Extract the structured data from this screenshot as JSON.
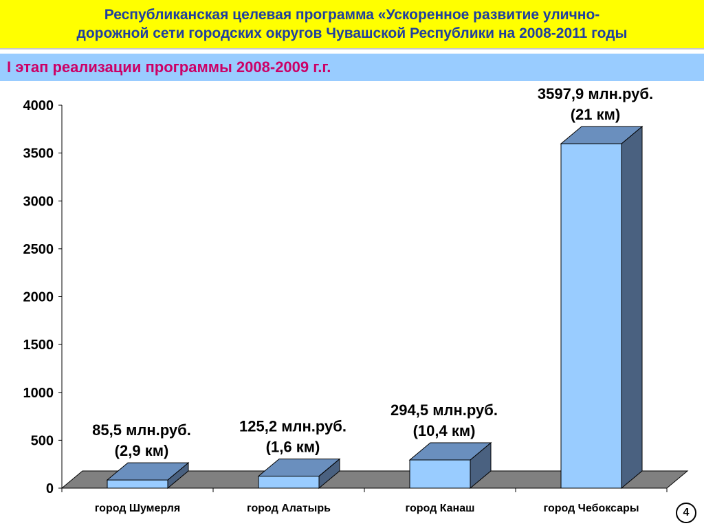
{
  "header": {
    "title_line1": "Республиканская целевая программа «Ускоренное развитие улично-",
    "title_line2": "дорожной сети городских округов Чувашской Республики на 2008-2011 годы",
    "stage": "I этап реализации программы 2008-2009 г.г."
  },
  "page_number": "4",
  "chart_data": {
    "type": "bar",
    "categories": [
      "город Шумерля",
      "город Алатырь",
      "город Канаш",
      "город Чебоксары"
    ],
    "values": [
      85.5,
      125.2,
      294.5,
      3597.9
    ],
    "data_labels": [
      [
        "85,5 млн.руб.",
        "(2,9 км)"
      ],
      [
        "125,2 млн.руб.",
        "(1,6 км)"
      ],
      [
        "294,5 млн.руб.",
        "(10,4 км)"
      ],
      [
        "3597,9 млн.руб.",
        "(21 км)"
      ]
    ],
    "yticks": [
      "0",
      "500",
      "1000",
      "1500",
      "2000",
      "2500",
      "3000",
      "3500",
      "4000"
    ],
    "ylim": [
      0,
      4000
    ],
    "grid": false,
    "style": "3d-column",
    "colors": {
      "bar_front": "#99ccff",
      "bar_top": "#6a8fbe",
      "bar_side": "#4a6180",
      "floor": "#808080",
      "title_text": "#1f3f9f",
      "title_bg": "#ffff00",
      "stage_text": "#cc0066",
      "stage_bg": "#99ccff"
    }
  }
}
